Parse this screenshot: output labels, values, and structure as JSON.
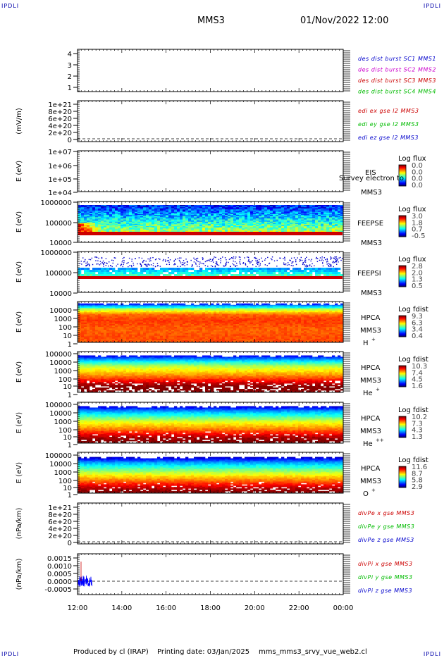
{
  "header": {
    "corner_tl": "IPDLI",
    "corner_tr": "IPDLI",
    "corner_bl": "IPDLI",
    "corner_br": "IPDLI",
    "mission": "MMS3",
    "datetime": "01/Nov/2022 12:00"
  },
  "footer": {
    "produced_by": "Produced by cl (IRAP)",
    "printing_date": "Printing date: 03/Jan/2025",
    "filename": "mms_mms3_srvy_vue_web2.cl"
  },
  "chart_data": [
    {
      "id": "p1",
      "type": "line",
      "ylabel": "",
      "yticks": [
        "4",
        "3",
        "2",
        "1"
      ],
      "ylim": [
        0.6,
        4.4
      ],
      "legend": [
        {
          "text": "des dist burst SC1 MMS1",
          "color": "#0000cc"
        },
        {
          "text": "des dist burst SC2 MMS2",
          "color": "#cc00cc"
        },
        {
          "text": "des dist burst SC3 MMS3",
          "color": "#cc0000"
        },
        {
          "text": "des dist burst SC4 MMS4",
          "color": "#00bb00"
        }
      ]
    },
    {
      "id": "p2",
      "type": "line",
      "ylabel": "(mV/m)",
      "yticks": [
        "1e+21",
        "8e+20",
        "6e+20",
        "4e+20",
        "2e+20",
        "0"
      ],
      "ylim": [
        0,
        1e+21
      ],
      "zero_line": true,
      "legend": [
        {
          "text": "edi ex gse l2 MMS3",
          "color": "#cc0000"
        },
        {
          "text": "edi ey gse l2 MMS3",
          "color": "#00bb00"
        },
        {
          "text": "edi ez gse l2 MMS3",
          "color": "#0000cc"
        }
      ]
    },
    {
      "id": "p3",
      "type": "heatmap",
      "ylabel": "E (eV)",
      "yticks": [
        "1e+07",
        "1e+06",
        "1e+05",
        "1e+04"
      ],
      "scale": "log",
      "ylim": [
        10000,
        10000000
      ],
      "instrument": "EIS",
      "species": "Survey electron to",
      "mission": "MMS3",
      "colorbar": {
        "title": "Log flux",
        "ticks": [
          "0.0",
          "0.0",
          "0.0",
          "0.0"
        ]
      },
      "style": "empty"
    },
    {
      "id": "p4",
      "type": "heatmap",
      "ylabel": "E (eV)",
      "yticks": [
        "1000000",
        "100000",
        "10000"
      ],
      "scale": "log",
      "ylim": [
        10000,
        1000000
      ],
      "instrument": "FEEPSE",
      "mission": "MMS3",
      "colorbar": {
        "title": "Log flux",
        "ticks": [
          "3.0",
          "1.8",
          "0.7",
          "-0.5"
        ]
      },
      "style": "feepse"
    },
    {
      "id": "p5",
      "type": "heatmap",
      "ylabel": "E (eV)",
      "yticks": [
        "1000000",
        "100000",
        "10000"
      ],
      "scale": "log",
      "ylim": [
        10000,
        1000000
      ],
      "instrument": "FEEPSI",
      "mission": "MMS3",
      "colorbar": {
        "title": "Log flux",
        "ticks": [
          "2.8",
          "2.0",
          "1.3",
          "0.5"
        ]
      },
      "style": "feepsi"
    },
    {
      "id": "p6",
      "type": "heatmap",
      "ylabel": "E (eV)",
      "yticks": [
        "10000",
        "1000",
        "100",
        "10",
        "1"
      ],
      "scale": "log",
      "ylim": [
        1,
        40000
      ],
      "instrument": "HPCA",
      "mission": "MMS3",
      "ion": "H",
      "ion_sup": "+",
      "colorbar": {
        "title": "Log fdist",
        "ticks": [
          "9.3",
          "6.3",
          "3.4",
          "0.4"
        ]
      },
      "style": "hplus"
    },
    {
      "id": "p7",
      "type": "heatmap",
      "ylabel": "E (eV)",
      "yticks": [
        "100000",
        "10000",
        "1000",
        "100",
        "10",
        "1"
      ],
      "scale": "log",
      "ylim": [
        1,
        100000
      ],
      "instrument": "HPCA",
      "mission": "MMS3",
      "ion": "He",
      "ion_sup": "+",
      "colorbar": {
        "title": "Log fdist",
        "ticks": [
          "10.3",
          "7.4",
          "4.5",
          "1.6"
        ]
      },
      "style": "heplus"
    },
    {
      "id": "p8",
      "type": "heatmap",
      "ylabel": "E (eV)",
      "yticks": [
        "100000",
        "10000",
        "1000",
        "100",
        "10",
        "1"
      ],
      "scale": "log",
      "ylim": [
        1,
        100000
      ],
      "instrument": "HPCA",
      "mission": "MMS3",
      "ion": "He",
      "ion_sup": "++",
      "colorbar": {
        "title": "Log fdist",
        "ticks": [
          "10.2",
          "7.3",
          "4.3",
          "1.3"
        ]
      },
      "style": "heplusplus"
    },
    {
      "id": "p9",
      "type": "heatmap",
      "ylabel": "E (eV)",
      "yticks": [
        "100000",
        "10000",
        "1000",
        "100",
        "10",
        "1"
      ],
      "scale": "log",
      "ylim": [
        1,
        100000
      ],
      "instrument": "HPCA",
      "mission": "MMS3",
      "ion": "O",
      "ion_sup": "+",
      "colorbar": {
        "title": "Log fdist",
        "ticks": [
          "11.6",
          "8.7",
          "5.8",
          "2.9"
        ]
      },
      "style": "oplus"
    },
    {
      "id": "p10",
      "type": "line",
      "ylabel": "(nPa/km)",
      "yticks": [
        "1e+21",
        "8e+20",
        "6e+20",
        "4e+20",
        "2e+20",
        "0"
      ],
      "ylim": [
        0,
        1e+21
      ],
      "zero_line": true,
      "legend": [
        {
          "text": "divPe x gse MMS3",
          "color": "#cc0000"
        },
        {
          "text": "divPe y gse MMS3",
          "color": "#00bb00"
        },
        {
          "text": "divPe z gse MMS3",
          "color": "#0000cc"
        }
      ]
    },
    {
      "id": "p11",
      "type": "line",
      "ylabel": "(nPa/km)",
      "yticks": [
        "0.0015",
        "0.0010",
        "0.0005",
        "0.0000",
        "-0.0005"
      ],
      "ylim": [
        -0.00085,
        0.00165
      ],
      "zero_line": true,
      "series": [
        {
          "name": "divPi z gse MMS3",
          "color": "#0000ff",
          "x": [
            "12:00",
            "12:40"
          ],
          "noise_amplitude": 0.0009,
          "spike_max": 0.0014
        }
      ],
      "legend": [
        {
          "text": "divPi x gse MMS3",
          "color": "#cc0000"
        },
        {
          "text": "divPi y gse MMS3",
          "color": "#00bb00"
        },
        {
          "text": "divPi z gse MMS3",
          "color": "#0000cc"
        }
      ]
    }
  ],
  "xaxis": {
    "ticks": [
      "12:00",
      "14:00",
      "16:00",
      "18:00",
      "20:00",
      "22:00",
      "00:00"
    ],
    "range": [
      "01/Nov/2022 12:00",
      "02/Nov/2022 00:00"
    ]
  }
}
